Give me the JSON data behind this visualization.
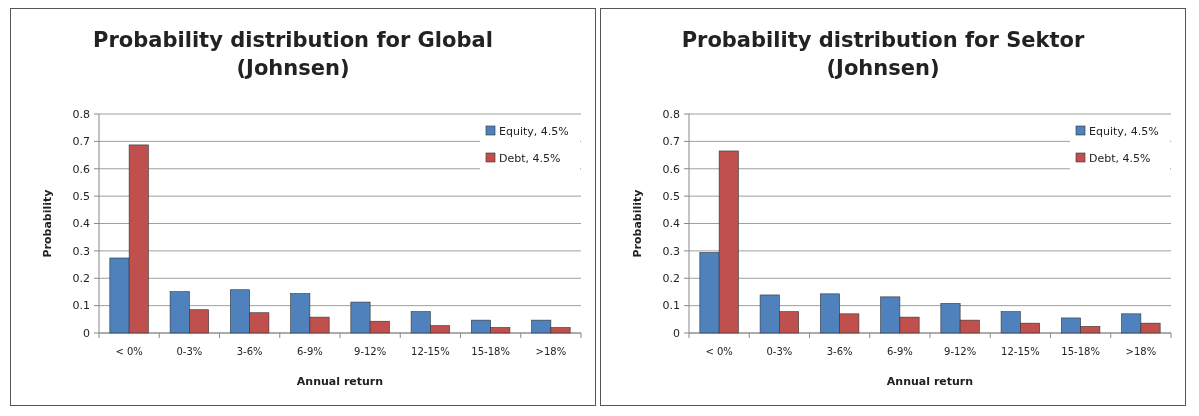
{
  "chart_data": [
    {
      "type": "bar",
      "title": "Probability distribution for Global\n(Johnsen)",
      "xlabel": "Annual return",
      "ylabel": "Probability",
      "categories": [
        "< 0%",
        "0-3%",
        "3-6%",
        "6-9%",
        "9-12%",
        "12-15%",
        "15-18%",
        ">18%"
      ],
      "series": [
        {
          "name": "Equity, 4.5%",
          "color": "#4f81bd",
          "values": [
            0.274,
            0.151,
            0.158,
            0.144,
            0.113,
            0.078,
            0.047,
            0.047
          ]
        },
        {
          "name": "Debt, 4.5%",
          "color": "#c0504d",
          "values": [
            0.687,
            0.085,
            0.074,
            0.058,
            0.043,
            0.027,
            0.02,
            0.02
          ]
        }
      ],
      "ylim": [
        0,
        0.8
      ],
      "yticks": [
        0,
        0.1,
        0.2,
        0.3,
        0.4,
        0.5,
        0.6,
        0.7,
        0.8
      ],
      "grid": "y",
      "legend": "top right"
    },
    {
      "type": "bar",
      "title": "Probability distribution for Sektor\n(Johnsen)",
      "xlabel": "Annual return",
      "ylabel": "Probability",
      "categories": [
        "< 0%",
        "0-3%",
        "3-6%",
        "6-9%",
        "9-12%",
        "12-15%",
        "15-18%",
        ">18%"
      ],
      "series": [
        {
          "name": "Equity, 4.5%",
          "color": "#4f81bd",
          "values": [
            0.294,
            0.139,
            0.143,
            0.132,
            0.108,
            0.078,
            0.055,
            0.07
          ]
        },
        {
          "name": "Debt, 4.5%",
          "color": "#c0504d",
          "values": [
            0.665,
            0.078,
            0.07,
            0.058,
            0.047,
            0.036,
            0.024,
            0.036
          ]
        }
      ],
      "ylim": [
        0,
        0.8
      ],
      "yticks": [
        0,
        0.1,
        0.2,
        0.3,
        0.4,
        0.5,
        0.6,
        0.7,
        0.8
      ],
      "grid": "y",
      "legend": "top right"
    }
  ]
}
